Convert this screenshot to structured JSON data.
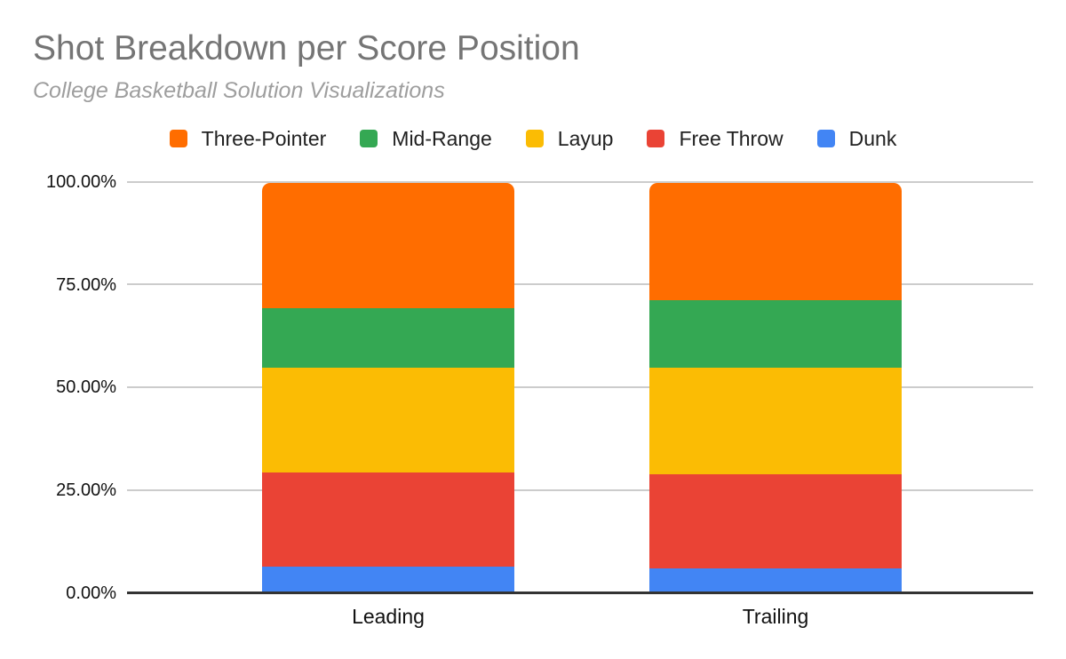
{
  "title": "Shot Breakdown per Score Position",
  "subtitle": "College Basketball Solution Visualizations",
  "chart_data": {
    "type": "bar",
    "subtype": "stacked-100-percent-column",
    "title": "Shot Breakdown per Score Position",
    "subtitle": "College Basketball Solution Visualizations",
    "categories": [
      "Leading",
      "Trailing"
    ],
    "series": [
      {
        "name": "Three-Pointer",
        "color": "#ff6d00",
        "values": [
          30.5,
          28.5
        ]
      },
      {
        "name": "Mid-Range",
        "color": "#34a853",
        "values": [
          14.5,
          16.5
        ]
      },
      {
        "name": "Layup",
        "color": "#fbbc04",
        "values": [
          25.5,
          26.0
        ]
      },
      {
        "name": "Free Throw",
        "color": "#ea4335",
        "values": [
          23.0,
          23.0
        ]
      },
      {
        "name": "Dunk",
        "color": "#4285f4",
        "values": [
          6.5,
          6.0
        ]
      }
    ],
    "stack_order_top_to_bottom": [
      "Three-Pointer",
      "Mid-Range",
      "Layup",
      "Free Throw",
      "Dunk"
    ],
    "unit": "percent",
    "ylim": [
      0,
      100
    ],
    "y_ticks": [
      "100.00%",
      "75.00%",
      "50.00%",
      "25.00%",
      "0.00%"
    ],
    "grid": true,
    "legend_position": "top"
  },
  "colors": {
    "background": "#ffffff",
    "title_text": "#757575",
    "subtitle_text": "#9e9e9e",
    "legend_text": "#212121",
    "axis_label_text": "#111111",
    "gridline": "#cccccc",
    "baseline": "#333333"
  }
}
